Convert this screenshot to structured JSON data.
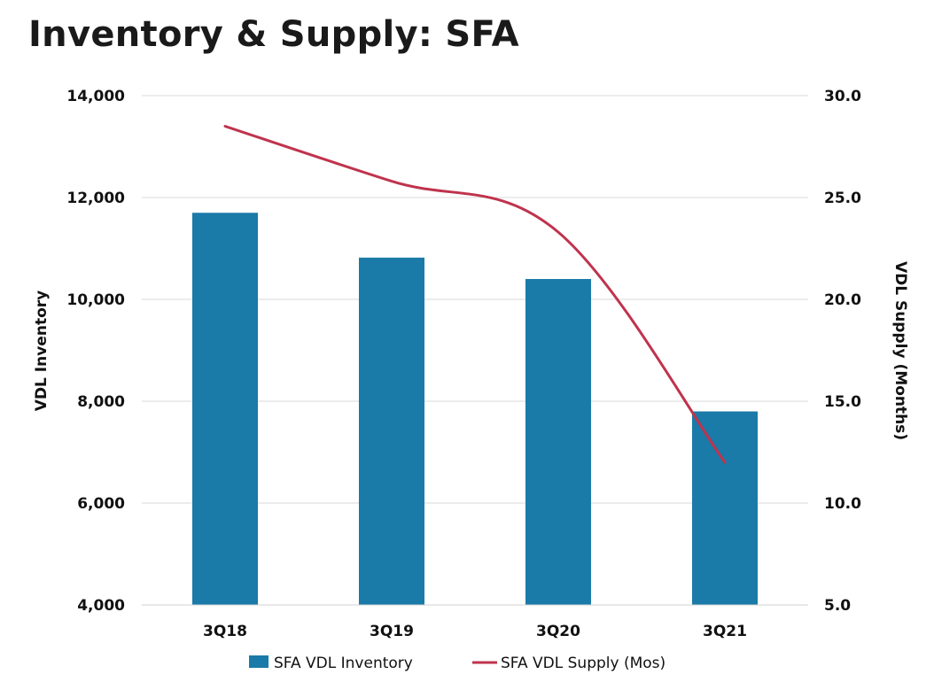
{
  "chart_data": {
    "type": "bar",
    "title": "Inventory & Supply: SFA",
    "categories": [
      "3Q18",
      "3Q19",
      "3Q20",
      "3Q21"
    ],
    "series": [
      {
        "name": "SFA VDL Inventory",
        "kind": "bar",
        "axis": "left",
        "color": "#1a7aa8",
        "values": [
          11700,
          10820,
          10400,
          7800
        ]
      },
      {
        "name": "SFA VDL Supply (Mos)",
        "kind": "line",
        "axis": "right",
        "color": "#c0334d",
        "values": [
          28.5,
          25.8,
          23.3,
          12.0
        ]
      }
    ],
    "y_left": {
      "label": "VDL Inventory",
      "min": 4000,
      "max": 14000,
      "ticks": [
        4000,
        6000,
        8000,
        10000,
        12000,
        14000
      ],
      "tick_labels": [
        "4,000",
        "6,000",
        "8,000",
        "10,000",
        "12,000",
        "14,000"
      ]
    },
    "y_right": {
      "label": "VDL Supply (Months)",
      "min": 5.0,
      "max": 30.0,
      "ticks": [
        5,
        10,
        15,
        20,
        25,
        30
      ],
      "tick_labels": [
        "5.0",
        "10.0",
        "15.0",
        "20.0",
        "25.0",
        "30.0"
      ]
    },
    "grid": true,
    "legend_position": "bottom"
  }
}
